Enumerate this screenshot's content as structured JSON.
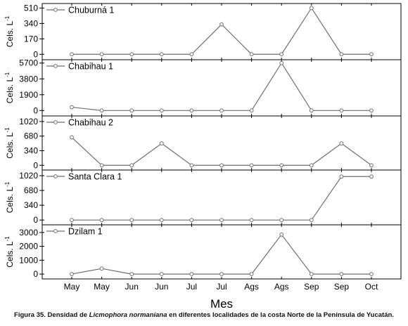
{
  "figure": {
    "xlabel": "Mes",
    "ylabel_main": "Cels. L",
    "ylabel_sup": "-1",
    "caption": {
      "before": "Figura 35. Densidad de ",
      "species": "Licmophora normaniana",
      "after": " en diferentes localidades de la costa Norte de la Península de Yucatán."
    }
  },
  "chart_data": [
    {
      "type": "line",
      "series": [
        {
          "name": "Chuburná 1",
          "values": [
            0,
            0,
            0,
            0,
            0,
            330,
            0,
            0,
            510,
            0,
            0
          ]
        }
      ],
      "categories": [
        "May",
        "May",
        "Jun",
        "Jun",
        "Jul",
        "Jul",
        "Ags",
        "Ags",
        "Sep",
        "Sep",
        "Oct"
      ],
      "yticks": [
        0,
        170,
        340,
        510
      ],
      "ylim": [
        -60,
        560
      ],
      "ylabel": "Cels. L-1",
      "xlabel": "Mes",
      "grid": false,
      "legend": "top-left",
      "color": "#6e6e6e"
    },
    {
      "type": "line",
      "series": [
        {
          "name": "Chabihau 1",
          "values": [
            400,
            0,
            0,
            0,
            0,
            0,
            0,
            5700,
            0,
            0,
            0
          ]
        }
      ],
      "categories": [
        "May",
        "May",
        "Jun",
        "Jun",
        "Jul",
        "Jul",
        "Ags",
        "Ags",
        "Sep",
        "Sep",
        "Oct"
      ],
      "yticks": [
        0,
        1900,
        3800,
        5700
      ],
      "ylim": [
        -650,
        6100
      ],
      "ylabel": "Cels. L-1",
      "xlabel": "Mes",
      "grid": false,
      "legend": "top-left",
      "color": "#6e6e6e"
    },
    {
      "type": "line",
      "series": [
        {
          "name": "Chabihau 2",
          "values": [
            650,
            0,
            0,
            510,
            0,
            0,
            0,
            0,
            0,
            510,
            0
          ]
        }
      ],
      "categories": [
        "May",
        "May",
        "Jun",
        "Jun",
        "Jul",
        "Jul",
        "Ags",
        "Ags",
        "Sep",
        "Sep",
        "Oct"
      ],
      "yticks": [
        0,
        340,
        680,
        1020
      ],
      "ylim": [
        -110,
        1150
      ],
      "ylabel": "Cels. L-1",
      "xlabel": "Mes",
      "grid": false,
      "legend": "top-left",
      "color": "#6e6e6e"
    },
    {
      "type": "line",
      "series": [
        {
          "name": "Santa Clara 1",
          "values": [
            0,
            0,
            0,
            0,
            0,
            0,
            0,
            0,
            0,
            1000,
            1000
          ]
        }
      ],
      "categories": [
        "May",
        "May",
        "Jun",
        "Jun",
        "Jul",
        "Jul",
        "Ags",
        "Ags",
        "Sep",
        "Sep",
        "Oct"
      ],
      "yticks": [
        0,
        340,
        680,
        1020
      ],
      "ylim": [
        -110,
        1150
      ],
      "ylabel": "Cels. L-1",
      "xlabel": "Mes",
      "grid": false,
      "legend": "top-left",
      "color": "#6e6e6e"
    },
    {
      "type": "line",
      "series": [
        {
          "name": "Dzilam 1",
          "values": [
            0,
            400,
            0,
            0,
            0,
            0,
            0,
            2850,
            0,
            0,
            0
          ]
        }
      ],
      "categories": [
        "May",
        "May",
        "Jun",
        "Jun",
        "Jul",
        "Jul",
        "Ags",
        "Ags",
        "Sep",
        "Sep",
        "Oct"
      ],
      "yticks": [
        0,
        1000,
        2000,
        3000
      ],
      "ylim": [
        -350,
        3550
      ],
      "ylabel": "Cels. L-1",
      "xlabel": "Mes",
      "grid": false,
      "legend": "top-left",
      "color": "#6e6e6e"
    }
  ]
}
